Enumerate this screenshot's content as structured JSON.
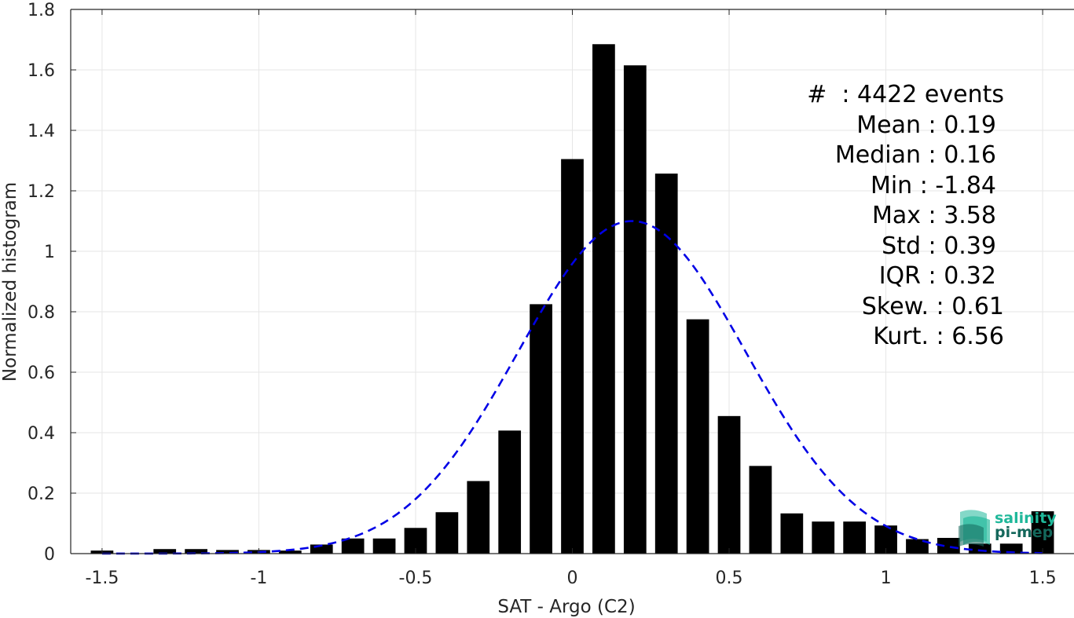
{
  "chart_data": {
    "type": "bar",
    "xlabel": "SAT - Argo (C2)",
    "ylabel": "Normalized histogram",
    "xlim": [
      -1.6,
      1.6
    ],
    "ylim": [
      0,
      1.8
    ],
    "grid": true,
    "xticks": [
      -1.5,
      -1,
      -0.5,
      0,
      0.5,
      1,
      1.5
    ],
    "xtick_labels": [
      "-1.5",
      "-1",
      "-0.5",
      "0",
      "0.5",
      "1",
      "1.5"
    ],
    "yticks": [
      0,
      0.2,
      0.4,
      0.6,
      0.8,
      1,
      1.2,
      1.4,
      1.6,
      1.8
    ],
    "ytick_labels": [
      "0",
      "0.2",
      "0.4",
      "0.6",
      "0.8",
      "1",
      "1.2",
      "1.4",
      "1.6",
      "1.8"
    ],
    "bin_width": 0.1,
    "bar_color": "#000000",
    "bars": [
      {
        "x": -1.5,
        "y": 0.01
      },
      {
        "x": -1.3,
        "y": 0.015
      },
      {
        "x": -1.2,
        "y": 0.015
      },
      {
        "x": -1.1,
        "y": 0.012
      },
      {
        "x": -1.0,
        "y": 0.012
      },
      {
        "x": -0.9,
        "y": 0.01
      },
      {
        "x": -0.8,
        "y": 0.03
      },
      {
        "x": -0.7,
        "y": 0.05
      },
      {
        "x": -0.6,
        "y": 0.05
      },
      {
        "x": -0.5,
        "y": 0.085
      },
      {
        "x": -0.4,
        "y": 0.137
      },
      {
        "x": -0.3,
        "y": 0.24
      },
      {
        "x": -0.2,
        "y": 0.407
      },
      {
        "x": -0.1,
        "y": 0.825
      },
      {
        "x": 0.0,
        "y": 1.305
      },
      {
        "x": 0.1,
        "y": 1.685
      },
      {
        "x": 0.2,
        "y": 1.615
      },
      {
        "x": 0.3,
        "y": 1.257
      },
      {
        "x": 0.4,
        "y": 0.775
      },
      {
        "x": 0.5,
        "y": 0.455
      },
      {
        "x": 0.6,
        "y": 0.29
      },
      {
        "x": 0.7,
        "y": 0.133
      },
      {
        "x": 0.8,
        "y": 0.106
      },
      {
        "x": 0.9,
        "y": 0.106
      },
      {
        "x": 1.0,
        "y": 0.093
      },
      {
        "x": 1.1,
        "y": 0.048
      },
      {
        "x": 1.2,
        "y": 0.052
      },
      {
        "x": 1.3,
        "y": 0.033
      },
      {
        "x": 1.4,
        "y": 0.033
      },
      {
        "x": 1.5,
        "y": 0.14
      }
    ],
    "fit": {
      "type": "gaussian",
      "color": "#0000e6",
      "style": "dashed",
      "mean": 0.19,
      "std": 0.363,
      "peak": 1.1,
      "x_range": [
        -1.5,
        1.5
      ]
    }
  },
  "stats": [
    {
      "label": "#  : 4422 events"
    },
    {
      "label": "Mean : 0.19"
    },
    {
      "label": "Median : 0.16"
    },
    {
      "label": "Min : -1.84"
    },
    {
      "label": "Max : 3.58"
    },
    {
      "label": "Std : 0.39"
    },
    {
      "label": "IQR : 0.32"
    },
    {
      "label": "Skew. : 0.61"
    },
    {
      "label": "Kurt. : 6.56"
    }
  ],
  "logo": {
    "line1": "salinity",
    "line2": "pi-mep",
    "color1": "#1fb89a",
    "color2": "#14675b"
  }
}
